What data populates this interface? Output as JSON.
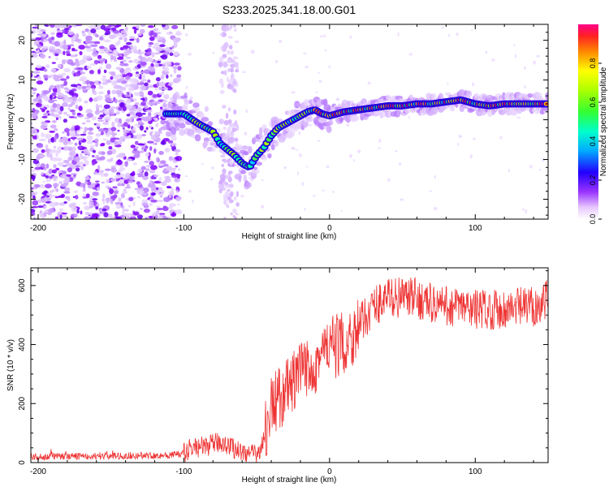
{
  "title": "S233.2025.341.18.00.G01",
  "chart_data": [
    {
      "type": "heatmap",
      "xlabel": "Height of straight line (km)",
      "ylabel": "Frequency (Hz)",
      "xlim": [
        -205,
        150
      ],
      "ylim": [
        -25,
        24
      ],
      "xticks": [
        -200,
        -100,
        0,
        100
      ],
      "yticks": [
        -20,
        -10,
        0,
        10,
        20
      ],
      "colorbar": {
        "label": "Normalized spectral amplitude",
        "range": [
          0,
          1
        ],
        "ticks": [
          0.0,
          0.2,
          0.4,
          0.6,
          0.8
        ]
      },
      "ridge": [
        [
          -110,
          1.5
        ],
        [
          -100,
          1.5
        ],
        [
          -90,
          -1
        ],
        [
          -80,
          -3
        ],
        [
          -75,
          -6
        ],
        [
          -70,
          -7.5
        ],
        [
          -65,
          -9
        ],
        [
          -60,
          -11
        ],
        [
          -55,
          -12
        ],
        [
          -50,
          -9
        ],
        [
          -45,
          -7
        ],
        [
          -40,
          -4
        ],
        [
          -35,
          -2
        ],
        [
          -30,
          -1
        ],
        [
          -25,
          0
        ],
        [
          -20,
          1
        ],
        [
          -15,
          2
        ],
        [
          -10,
          2.5
        ],
        [
          -5,
          1.5
        ],
        [
          0,
          1
        ],
        [
          10,
          2
        ],
        [
          20,
          2.5
        ],
        [
          30,
          3
        ],
        [
          40,
          3.5
        ],
        [
          50,
          3.5
        ],
        [
          60,
          4
        ],
        [
          70,
          4
        ],
        [
          80,
          4.5
        ],
        [
          90,
          5
        ],
        [
          100,
          4
        ],
        [
          110,
          3.5
        ],
        [
          120,
          4
        ],
        [
          130,
          4
        ],
        [
          150,
          4
        ]
      ]
    },
    {
      "type": "line",
      "xlabel": "Height of straight line (km)",
      "ylabel": "SNR (10 * v/v)",
      "xlim": [
        -205,
        150
      ],
      "ylim": [
        0,
        660
      ],
      "xticks": [
        -200,
        -100,
        0,
        100
      ],
      "yticks": [
        0,
        200,
        400,
        600
      ],
      "series": [
        {
          "name": "SNR",
          "color": "#ee3333",
          "envelope": [
            [
              -205,
              20
            ],
            [
              -150,
              22
            ],
            [
              -110,
              25
            ],
            [
              -100,
              30
            ],
            [
              -95,
              50
            ],
            [
              -85,
              55
            ],
            [
              -75,
              70
            ],
            [
              -70,
              60
            ],
            [
              -62,
              40
            ],
            [
              -50,
              25
            ],
            [
              -45,
              80
            ],
            [
              -40,
              190
            ],
            [
              -30,
              240
            ],
            [
              -20,
              300
            ],
            [
              -10,
              340
            ],
            [
              -5,
              370
            ],
            [
              0,
              390
            ],
            [
              10,
              400
            ],
            [
              20,
              460
            ],
            [
              30,
              530
            ],
            [
              40,
              560
            ],
            [
              50,
              560
            ],
            [
              60,
              555
            ],
            [
              70,
              540
            ],
            [
              80,
              530
            ],
            [
              100,
              520
            ],
            [
              120,
              520
            ],
            [
              140,
              530
            ],
            [
              150,
              550
            ]
          ]
        }
      ]
    }
  ]
}
